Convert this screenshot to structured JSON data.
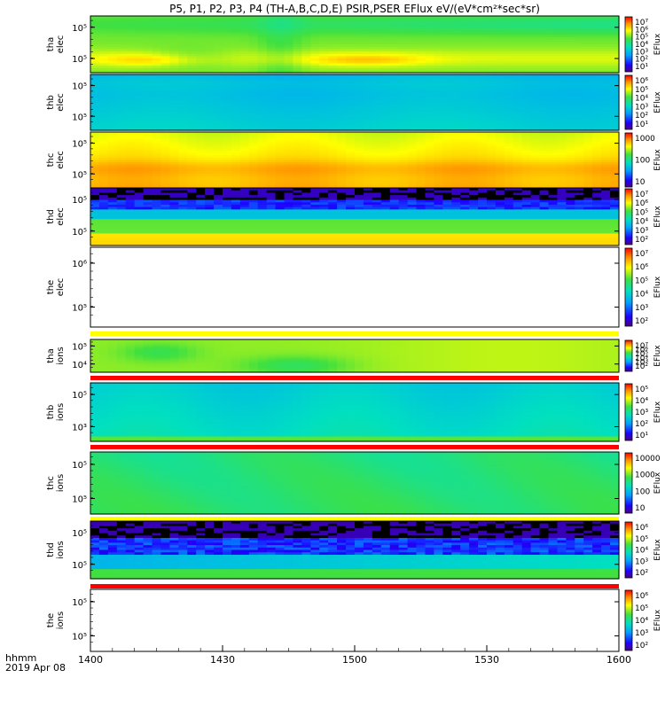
{
  "title": "P5, P1, P2, P3, P4 (TH-A,B,C,D,E) PSIR,PSER EFlux eV/(eV*cm²*sec*sr)",
  "colors": {
    "frame": "#000000",
    "flag_yellow": "#ffff00",
    "flag_red": "#ff0000",
    "background": "#ffffff"
  },
  "chart_data": {
    "type": "heatmap",
    "title": "P5, P1, P2, P3, P4 (TH-A,B,C,D,E) PSIR,PSER EFlux eV/(eV*cm²*sec*sr)",
    "x_axis": {
      "range": [
        "14:00",
        "16:00"
      ],
      "tick_labels": [
        "1400",
        "1430",
        "1500",
        "1530",
        "1600"
      ],
      "label": "hhmm",
      "date": "2019 Apr 08"
    },
    "panels": [
      {
        "probe": "tha",
        "species": "elec",
        "ylabel": [
          "tha",
          "elec"
        ],
        "yticks": [
          "10⁵",
          "10⁵"
        ],
        "has_data": true,
        "pattern": "tha_elec",
        "colorbar": {
          "label": "EFlux",
          "ticks": [
            "10⁷",
            "10⁶",
            "10⁵",
            "10⁴",
            "10³",
            "10²",
            "10¹"
          ]
        },
        "flag_bar": null
      },
      {
        "probe": "thb",
        "species": "elec",
        "ylabel": [
          "thb",
          "elec"
        ],
        "yticks": [
          "10⁵",
          "10⁵"
        ],
        "has_data": true,
        "pattern": "thb_elec",
        "colorbar": {
          "label": "EFlux",
          "ticks": [
            "10⁶",
            "10⁵",
            "10⁴",
            "10³",
            "10²",
            "10¹"
          ]
        },
        "flag_bar": null
      },
      {
        "probe": "thc",
        "species": "elec",
        "ylabel": [
          "thc",
          "elec"
        ],
        "yticks": [
          "10⁵",
          "10⁵"
        ],
        "has_data": true,
        "pattern": "thc_elec",
        "colorbar": {
          "label": "EFlux",
          "ticks": [
            "1000",
            "100",
            "10"
          ]
        },
        "flag_bar": null
      },
      {
        "probe": "thd",
        "species": "elec",
        "ylabel": [
          "thd",
          "elec"
        ],
        "yticks": [
          "10⁵",
          "10⁵"
        ],
        "has_data": true,
        "pattern": "thd_elec",
        "colorbar": {
          "label": "EFlux",
          "ticks": [
            "10⁷",
            "10⁶",
            "10⁵",
            "10⁴",
            "10³",
            "10²"
          ]
        },
        "flag_bar": null
      },
      {
        "probe": "the",
        "species": "elec",
        "ylabel": [
          "the",
          "elec"
        ],
        "yticks": [
          "10⁶",
          "10⁵"
        ],
        "has_data": false,
        "pattern": "empty",
        "colorbar": {
          "label": "EFlux",
          "ticks": [
            "10⁷",
            "10⁶",
            "10⁵",
            "10⁴",
            "10³",
            "10²"
          ]
        },
        "flag_bar": "yellow"
      },
      {
        "probe": "tha",
        "species": "ions",
        "ylabel": [
          "tha",
          "ions"
        ],
        "yticks": [
          "10⁵",
          "10⁴"
        ],
        "has_data": true,
        "pattern": "tha_ions",
        "colorbar": {
          "label": "EFlux",
          "ticks": [
            "10⁷",
            "10⁶",
            "10⁵",
            "10⁴",
            "10³",
            "10²"
          ]
        },
        "flag_bar": "red"
      },
      {
        "probe": "thb",
        "species": "ions",
        "ylabel": [
          "thb",
          "ions"
        ],
        "yticks": [
          "10⁵",
          "10³"
        ],
        "has_data": true,
        "pattern": "thb_ions",
        "colorbar": {
          "label": "EFlux",
          "ticks": [
            "10⁵",
            "10⁴",
            "10³",
            "10²",
            "10¹"
          ]
        },
        "flag_bar": "red"
      },
      {
        "probe": "thc",
        "species": "ions",
        "ylabel": [
          "thc",
          "ions"
        ],
        "yticks": [
          "10⁵",
          "10⁵"
        ],
        "has_data": true,
        "pattern": "thc_ions",
        "colorbar": {
          "label": "EFlux",
          "ticks": [
            "10000",
            "1000",
            "100",
            "10"
          ]
        },
        "flag_bar": "yellow"
      },
      {
        "probe": "thd",
        "species": "ions",
        "ylabel": [
          "thd",
          "ions"
        ],
        "yticks": [
          "10⁵",
          "10⁵"
        ],
        "has_data": true,
        "pattern": "thd_ions",
        "colorbar": {
          "label": "EFlux",
          "ticks": [
            "10⁶",
            "10⁵",
            "10⁴",
            "10³",
            "10²"
          ]
        },
        "flag_bar": "red"
      },
      {
        "probe": "the",
        "species": "ions",
        "ylabel": [
          "the",
          "ions"
        ],
        "yticks": [
          "10⁵",
          "10⁵"
        ],
        "has_data": false,
        "pattern": "empty",
        "colorbar": {
          "label": "EFlux",
          "ticks": [
            "10⁶",
            "10⁵",
            "10⁴",
            "10³",
            "10²"
          ]
        },
        "flag_bar": null
      }
    ]
  }
}
